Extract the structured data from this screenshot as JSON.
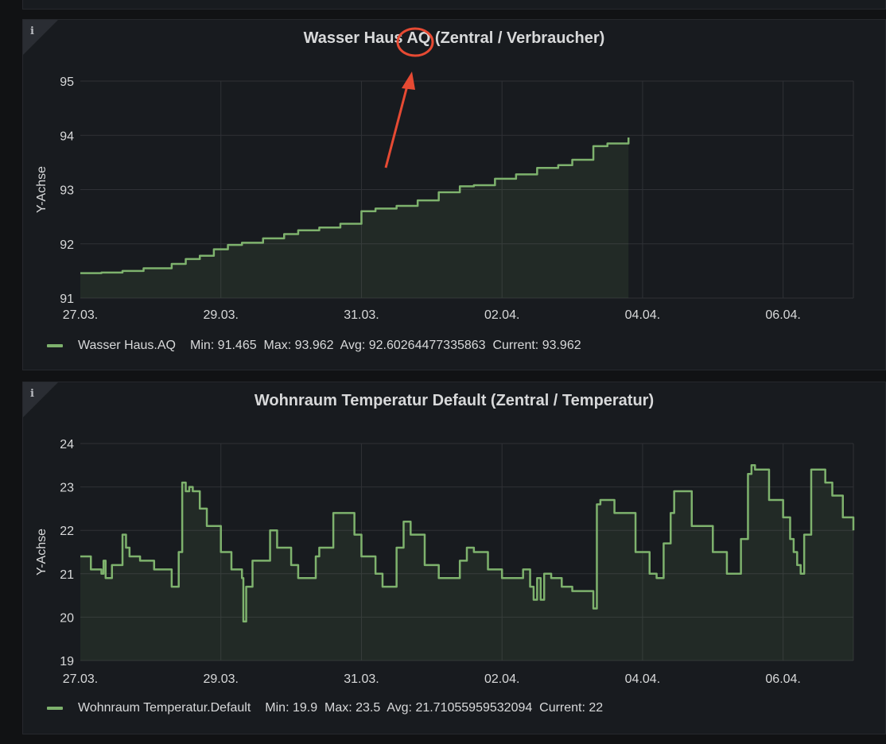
{
  "panels": [
    {
      "info_icon": "i",
      "title_before": "Wasser Haus ",
      "title_highlight": "AQ",
      "title_after": " (Zentral / Verbraucher)",
      "legend_name": "Wasser Haus.AQ",
      "legend_stats": "Min: 91.465  Max: 93.962  Avg: 92.60264477335863  Current: 93.962"
    },
    {
      "info_icon": "i",
      "title": "Wohnraum Temperatur Default (Zentral / Temperatur)",
      "legend_name": "Wohnraum Temperatur.Default",
      "legend_stats": "Min: 19.9  Max: 23.5  Avg: 21.71055959532094  Current: 22"
    }
  ],
  "colors": {
    "series": "#7eb26d",
    "annotation": "#e64a33"
  },
  "chart_data": [
    {
      "type": "area",
      "title": "Wasser Haus AQ (Zentral / Verbraucher)",
      "ylabel": "Y-Achse",
      "ylim": [
        91,
        95
      ],
      "yticks": [
        "91",
        "92",
        "93",
        "94",
        "95"
      ],
      "xlabels": [
        "27.03.",
        "29.03.",
        "31.03.",
        "02.04.",
        "04.04.",
        "06.04."
      ],
      "xlim": [
        0,
        11
      ],
      "grid": true,
      "legend_position": "bottom",
      "series": [
        {
          "name": "Wasser Haus.AQ",
          "x": [
            0,
            0.3,
            0.6,
            0.9,
            1.3,
            1.5,
            1.7,
            1.9,
            2.1,
            2.3,
            2.6,
            2.9,
            3.1,
            3.4,
            3.7,
            4.0,
            4.2,
            4.5,
            4.8,
            5.1,
            5.4,
            5.6,
            5.9,
            6.2,
            6.5,
            6.8,
            7.0,
            7.3,
            7.5,
            7.8
          ],
          "values": [
            91.46,
            91.47,
            91.5,
            91.55,
            91.63,
            91.72,
            91.78,
            91.9,
            91.98,
            92.02,
            92.1,
            92.18,
            92.25,
            92.3,
            92.37,
            92.6,
            92.65,
            92.7,
            92.8,
            92.95,
            93.06,
            93.08,
            93.2,
            93.28,
            93.4,
            93.45,
            93.55,
            93.8,
            93.85,
            93.96
          ]
        }
      ]
    },
    {
      "type": "area",
      "title": "Wohnraum Temperatur Default (Zentral / Temperatur)",
      "ylabel": "Y-Achse",
      "ylim": [
        19,
        24
      ],
      "yticks": [
        "19",
        "20",
        "21",
        "22",
        "23",
        "24"
      ],
      "xlabels": [
        "27.03.",
        "29.03.",
        "31.03.",
        "02.04.",
        "04.04.",
        "06.04."
      ],
      "xlim": [
        0,
        11
      ],
      "grid": true,
      "legend_position": "bottom",
      "series": [
        {
          "name": "Wohnraum Temperatur.Default",
          "x": [
            0,
            0.15,
            0.3,
            0.33,
            0.36,
            0.45,
            0.6,
            0.65,
            0.7,
            0.85,
            1.05,
            1.25,
            1.3,
            1.4,
            1.45,
            1.5,
            1.55,
            1.6,
            1.7,
            1.8,
            2.0,
            2.15,
            2.3,
            2.32,
            2.36,
            2.45,
            2.7,
            2.8,
            3.0,
            3.1,
            3.3,
            3.35,
            3.4,
            3.6,
            3.9,
            4.0,
            4.2,
            4.3,
            4.5,
            4.6,
            4.7,
            4.9,
            5.1,
            5.3,
            5.4,
            5.5,
            5.6,
            5.8,
            6.0,
            6.2,
            6.3,
            6.4,
            6.45,
            6.5,
            6.55,
            6.6,
            6.7,
            6.85,
            7.0,
            7.2,
            7.3,
            7.35,
            7.4,
            7.6,
            7.9,
            8.1,
            8.2,
            8.3,
            8.4,
            8.45,
            8.6,
            8.7,
            9.0,
            9.2,
            9.4,
            9.5,
            9.55,
            9.6,
            9.8,
            10.0,
            10.1,
            10.15,
            10.2,
            10.25,
            10.3,
            10.4,
            10.6,
            10.7,
            10.85,
            11.0
          ],
          "values": [
            21.4,
            21.1,
            21.0,
            21.3,
            20.9,
            21.2,
            21.9,
            21.6,
            21.4,
            21.3,
            21.1,
            21.1,
            20.7,
            21.5,
            23.1,
            22.9,
            23.0,
            22.9,
            22.5,
            22.1,
            21.5,
            21.1,
            20.9,
            19.9,
            20.7,
            21.3,
            22.0,
            21.6,
            21.2,
            20.9,
            20.9,
            21.4,
            21.6,
            22.4,
            21.9,
            21.4,
            21.0,
            20.7,
            21.6,
            22.2,
            21.9,
            21.2,
            20.9,
            20.9,
            21.3,
            21.6,
            21.5,
            21.1,
            20.9,
            20.9,
            21.1,
            20.7,
            20.4,
            20.9,
            20.4,
            21.0,
            20.9,
            20.7,
            20.6,
            20.6,
            20.2,
            22.6,
            22.7,
            22.4,
            21.5,
            21.0,
            20.9,
            21.7,
            22.4,
            22.9,
            22.9,
            22.1,
            21.5,
            21.0,
            21.8,
            23.3,
            23.5,
            23.4,
            22.7,
            22.3,
            21.8,
            21.5,
            21.2,
            21.0,
            21.9,
            23.4,
            23.1,
            22.8,
            22.3,
            22.0
          ]
        }
      ]
    }
  ]
}
